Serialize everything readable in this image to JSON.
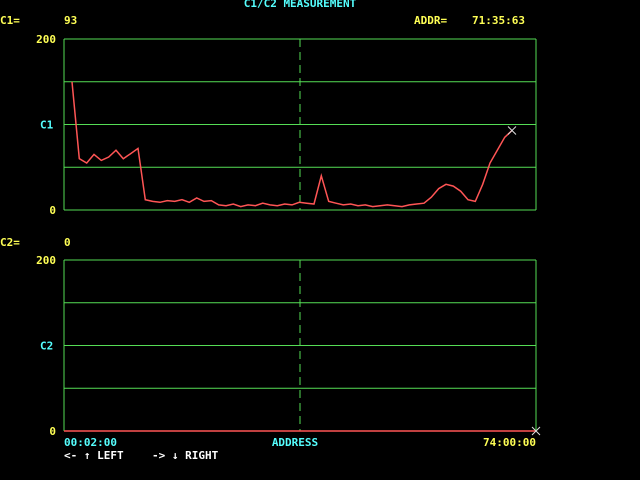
{
  "screen": {
    "title": "C1/C2 MEASUREMENT",
    "c1_label": "C1=",
    "c1_value": "93",
    "addr_label": "ADDR=",
    "addr_value": "71:35:63",
    "c2_label": "C2=",
    "c2_value": "0",
    "x_start": "00:02:00",
    "x_label": "ADDRESS",
    "x_end": "74:00:00",
    "left_key": "<- ↑ LEFT",
    "right_key": "-> ↓ RIGHT"
  },
  "chart_data": [
    {
      "type": "line",
      "color": "#ff5555",
      "ylim": [
        0,
        200
      ],
      "yticks": [
        0,
        {
          "value": 50,
          "label": null
        },
        {
          "value": 100,
          "label": "C1"
        },
        {
          "value": 150,
          "label": null
        },
        200
      ],
      "values": [
        150,
        60,
        55,
        65,
        58,
        62,
        70,
        60,
        66,
        72,
        12,
        10,
        9,
        11,
        10,
        12,
        9,
        14,
        10,
        11,
        6,
        5,
        7,
        4,
        6,
        5,
        8,
        6,
        5,
        7,
        6,
        9,
        8,
        7,
        40,
        10,
        8,
        6,
        7,
        5,
        6,
        4,
        5,
        6,
        5,
        4,
        6,
        7,
        8,
        15,
        25,
        30,
        28,
        22,
        12,
        10,
        30,
        55,
        70,
        85,
        93
      ]
    },
    {
      "type": "line",
      "color": "#ff5555",
      "ylim": [
        0,
        200
      ],
      "yticks": [
        0,
        {
          "value": 50,
          "label": null
        },
        {
          "value": 100,
          "label": "C2"
        },
        {
          "value": 150,
          "label": null
        },
        200
      ],
      "values": [
        0,
        0,
        0,
        0,
        0,
        0,
        0,
        0,
        0,
        0,
        0,
        0,
        0,
        0,
        0,
        0,
        0,
        0,
        0,
        0,
        0
      ]
    }
  ]
}
